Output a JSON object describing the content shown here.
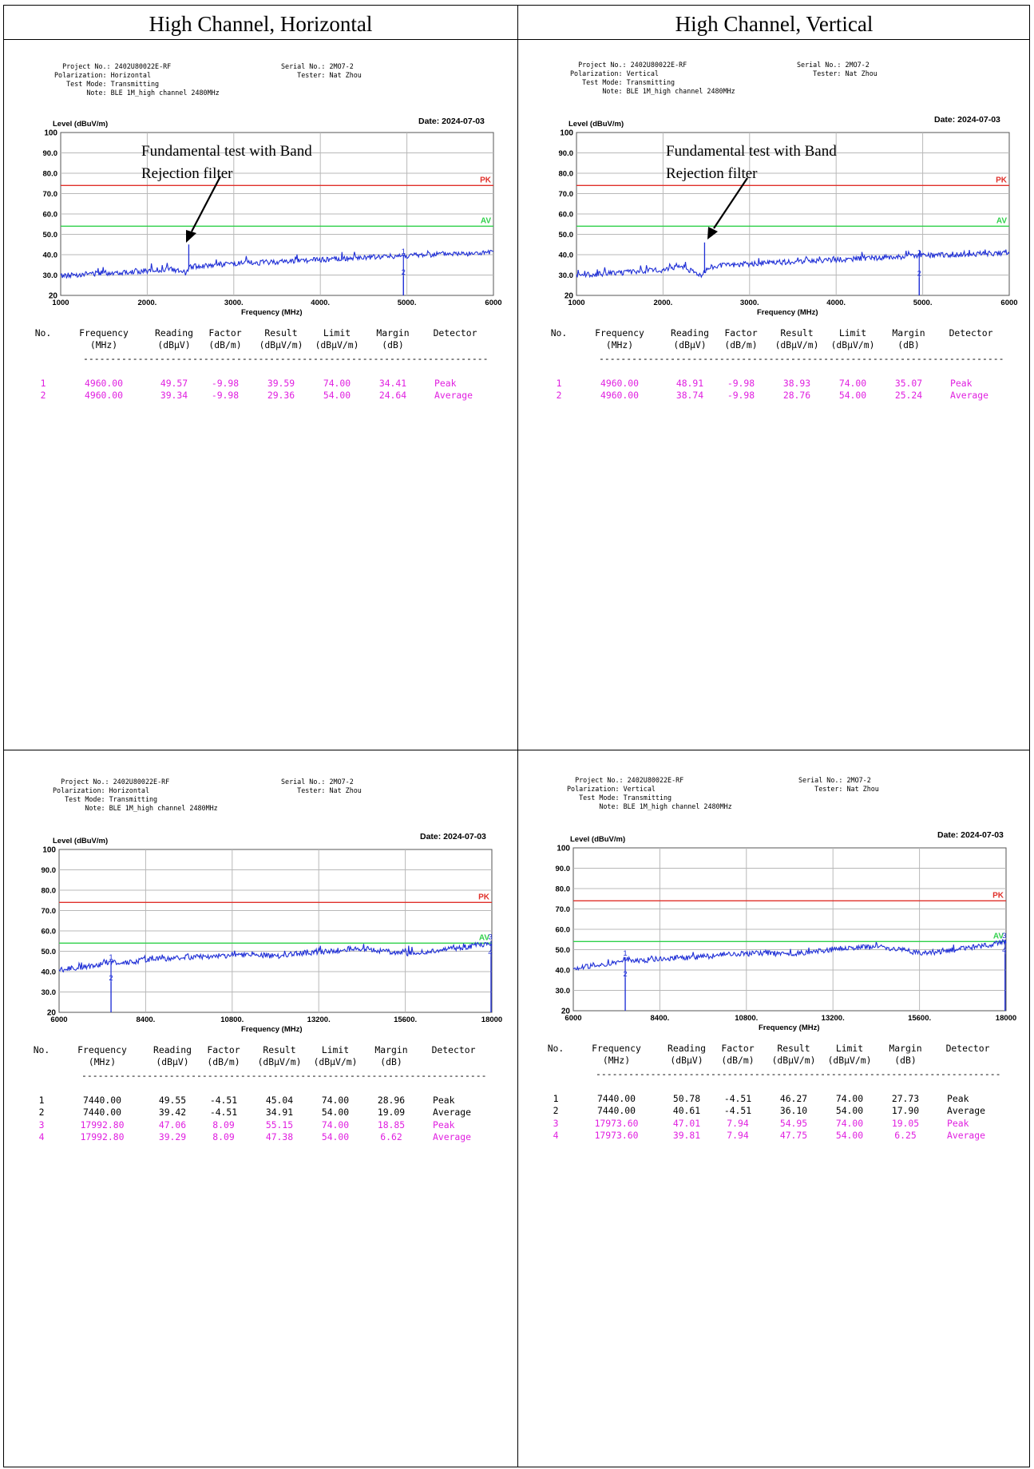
{
  "header": {
    "col_titles": [
      "High Channel, Horizontal",
      "High Channel, Vertical"
    ]
  },
  "colors": {
    "trace": "#1f2fd6",
    "marker": "#1f2fd6",
    "pk_line": "#e0302a",
    "av_line": "#2fd04a",
    "grid": "#b8b8b8",
    "limit_row": "#e020e0",
    "normal_row": "#000000"
  },
  "table_headers": {
    "no": "No.",
    "frequency": "Frequency",
    "frequency_unit": "(MHz)",
    "reading": "Reading",
    "reading_unit": "(dBμV)",
    "factor": "Factor",
    "factor_unit": "(dB/m)",
    "result": "Result",
    "result_unit": "(dBμV/m)",
    "limit": "Limit",
    "limit_unit": "(dBμV/m)",
    "margin": "Margin",
    "margin_unit": "(dB)",
    "detector": "Detector"
  },
  "panels": [
    {
      "meta": {
        "line1": "  Project No.: 2402U80022E-RF",
        "line2": "Polarization: Horizontal",
        "line3": "   Test Mode: Transmitting",
        "line4": "        Note: BLE 1M_high channel 2480MHz",
        "serial": "Serial No.: 2MO7-2",
        "tester": "    Tester: Nat Zhou"
      },
      "date": "Date: 2024-07-03",
      "ylabel": "Level (dBuV/m)",
      "xlabel": "Frequency (MHz)",
      "annotation": {
        "line1": "Fundamental test with Band",
        "line2": "Rejection filter"
      },
      "rows": [
        {
          "no": "1",
          "freq": "4960.00",
          "reading": "49.57",
          "factor": "-9.98",
          "result": "39.59",
          "limit": "74.00",
          "margin": "34.41",
          "detector": "Peak",
          "highlight": true
        },
        {
          "no": "2",
          "freq": "4960.00",
          "reading": "39.34",
          "factor": "-9.98",
          "result": "29.36",
          "limit": "54.00",
          "margin": "24.64",
          "detector": "Average",
          "highlight": true
        }
      ]
    },
    {
      "meta": {
        "line1": "  Project No.: 2402U80022E-RF",
        "line2": "Polarization: Vertical",
        "line3": "   Test Mode: Transmitting",
        "line4": "        Note: BLE 1M_high channel 2480MHz",
        "serial": "Serial No.: 2MO7-2",
        "tester": "    Tester: Nat Zhou"
      },
      "date": "Date: 2024-07-03",
      "ylabel": "Level (dBuV/m)",
      "xlabel": "Frequency (MHz)",
      "annotation": {
        "line1": "Fundamental test with Band",
        "line2": "Rejection filter"
      },
      "rows": [
        {
          "no": "1",
          "freq": "4960.00",
          "reading": "48.91",
          "factor": "-9.98",
          "result": "38.93",
          "limit": "74.00",
          "margin": "35.07",
          "detector": "Peak",
          "highlight": true
        },
        {
          "no": "2",
          "freq": "4960.00",
          "reading": "38.74",
          "factor": "-9.98",
          "result": "28.76",
          "limit": "54.00",
          "margin": "25.24",
          "detector": "Average",
          "highlight": true
        }
      ]
    },
    {
      "meta": {
        "line1": "  Project No.: 2402U80022E-RF",
        "line2": "Polarization: Horizontal",
        "line3": "   Test Mode: Transmitting",
        "line4": "        Note: BLE 1M_high channel 2480MHz",
        "serial": "Serial No.: 2MO7-2",
        "tester": "    Tester: Nat Zhou"
      },
      "date": "Date: 2024-07-03",
      "ylabel": "Level (dBuV/m)",
      "xlabel": "Frequency (MHz)",
      "rows": [
        {
          "no": "1",
          "freq": "7440.00",
          "reading": "49.55",
          "factor": "-4.51",
          "result": "45.04",
          "limit": "74.00",
          "margin": "28.96",
          "detector": "Peak",
          "highlight": false
        },
        {
          "no": "2",
          "freq": "7440.00",
          "reading": "39.42",
          "factor": "-4.51",
          "result": "34.91",
          "limit": "54.00",
          "margin": "19.09",
          "detector": "Average",
          "highlight": false
        },
        {
          "no": "3",
          "freq": "17992.80",
          "reading": "47.06",
          "factor": "8.09",
          "result": "55.15",
          "limit": "74.00",
          "margin": "18.85",
          "detector": "Peak",
          "highlight": true
        },
        {
          "no": "4",
          "freq": "17992.80",
          "reading": "39.29",
          "factor": "8.09",
          "result": "47.38",
          "limit": "54.00",
          "margin": "6.62",
          "detector": "Average",
          "highlight": true
        }
      ]
    },
    {
      "meta": {
        "line1": "  Project No.: 2402U80022E-RF",
        "line2": "Polarization: Vertical",
        "line3": "   Test Mode: Transmitting",
        "line4": "        Note: BLE 1M_high channel 2480MHz",
        "serial": "Serial No.: 2MO7-2",
        "tester": "    Tester: Nat Zhou"
      },
      "date": "Date: 2024-07-03",
      "ylabel": "Level (dBuV/m)",
      "xlabel": "Frequency (MHz)",
      "rows": [
        {
          "no": "1",
          "freq": "7440.00",
          "reading": "50.78",
          "factor": "-4.51",
          "result": "46.27",
          "limit": "74.00",
          "margin": "27.73",
          "detector": "Peak",
          "highlight": false
        },
        {
          "no": "2",
          "freq": "7440.00",
          "reading": "40.61",
          "factor": "-4.51",
          "result": "36.10",
          "limit": "54.00",
          "margin": "17.90",
          "detector": "Average",
          "highlight": false
        },
        {
          "no": "3",
          "freq": "17973.60",
          "reading": "47.01",
          "factor": "7.94",
          "result": "54.95",
          "limit": "74.00",
          "margin": "19.05",
          "detector": "Peak",
          "highlight": true
        },
        {
          "no": "4",
          "freq": "17973.60",
          "reading": "39.81",
          "factor": "7.94",
          "result": "47.75",
          "limit": "54.00",
          "margin": "6.25",
          "detector": "Average",
          "highlight": true
        }
      ]
    }
  ],
  "chart_data": [
    {
      "type": "line",
      "xlabel": "Frequency (MHz)",
      "ylabel": "Level (dBuV/m)",
      "xlim": [
        1000,
        6000
      ],
      "ylim": [
        20,
        100
      ],
      "xticks": [
        "1000",
        "2000.",
        "3000.",
        "4000.",
        "5000.",
        "6000"
      ],
      "yticks": [
        "20",
        "30.0",
        "40.0",
        "50.0",
        "60.0",
        "70.0",
        "80.0",
        "90.0",
        "100"
      ],
      "grid": true,
      "limit_lines": [
        {
          "name": "PK",
          "y": 74
        },
        {
          "name": "AV",
          "y": 54
        }
      ],
      "series": [
        {
          "x": [
            1000,
            1250,
            1500,
            1750,
            2000,
            2250,
            2450,
            2500,
            2750,
            3000,
            3250,
            3500,
            3750,
            4000,
            4250,
            4500,
            4750,
            5000,
            5250,
            5500,
            5750,
            6000
          ],
          "y": [
            29.5,
            30.5,
            31,
            31.5,
            32,
            33,
            31,
            34,
            35,
            35.5,
            36,
            36.5,
            37,
            37.5,
            38,
            38.5,
            39,
            39.5,
            40,
            40.5,
            40.5,
            41
          ]
        }
      ],
      "spikes": [
        {
          "x": 2480,
          "y": 45
        }
      ],
      "markers": [
        {
          "label": "1",
          "x": 4960,
          "y": 39.59
        },
        {
          "label": "2",
          "x": 4960,
          "y": 29.36
        }
      ]
    },
    {
      "type": "line",
      "xlabel": "Frequency (MHz)",
      "ylabel": "Level (dBuV/m)",
      "xlim": [
        1000,
        6000
      ],
      "ylim": [
        20,
        100
      ],
      "xticks": [
        "1000",
        "2000.",
        "3000.",
        "4000.",
        "5000.",
        "6000"
      ],
      "yticks": [
        "20",
        "30.0",
        "40.0",
        "50.0",
        "60.0",
        "70.0",
        "80.0",
        "90.0",
        "100"
      ],
      "grid": true,
      "limit_lines": [
        {
          "name": "PK",
          "y": 74
        },
        {
          "name": "AV",
          "y": 54
        }
      ],
      "series": [
        {
          "x": [
            1000,
            1250,
            1500,
            1750,
            2000,
            2100,
            2250,
            2400,
            2450,
            2550,
            2750,
            3000,
            3250,
            3500,
            3750,
            4000,
            4250,
            4500,
            4750,
            5000,
            5250,
            5500,
            5750,
            6000
          ],
          "y": [
            30,
            30.5,
            31,
            32,
            32.5,
            34,
            33.5,
            31,
            30,
            34,
            35,
            35.5,
            36,
            36.5,
            37,
            37.5,
            38,
            38.5,
            39,
            39.5,
            40,
            40,
            40.5,
            41
          ]
        }
      ],
      "spikes": [
        {
          "x": 2480,
          "y": 46
        }
      ],
      "markers": [
        {
          "label": "1",
          "x": 4960,
          "y": 38.93
        },
        {
          "label": "2",
          "x": 4960,
          "y": 28.76
        }
      ]
    },
    {
      "type": "line",
      "xlabel": "Frequency (MHz)",
      "ylabel": "Level (dBuV/m)",
      "xlim": [
        6000,
        18000
      ],
      "ylim": [
        20,
        100
      ],
      "xticks": [
        "6000",
        "8400.",
        "10800.",
        "13200.",
        "15600.",
        "18000"
      ],
      "yticks": [
        "20",
        "30.0",
        "40.0",
        "50.0",
        "60.0",
        "70.0",
        "80.0",
        "90.0",
        "100"
      ],
      "grid": true,
      "limit_lines": [
        {
          "name": "PK",
          "y": 74
        },
        {
          "name": "AV",
          "y": 54
        }
      ],
      "series": [
        {
          "x": [
            6000,
            6600,
            7200,
            7440,
            7800,
            8400,
            9000,
            9600,
            10200,
            10800,
            11400,
            12000,
            12600,
            13200,
            13800,
            14400,
            15000,
            15600,
            16200,
            16800,
            17400,
            18000
          ],
          "y": [
            41,
            42,
            43.5,
            45,
            44,
            46,
            46.5,
            47,
            47.5,
            48,
            48.5,
            47.5,
            49,
            49.5,
            50.5,
            51.5,
            50,
            49,
            49.5,
            51,
            52.5,
            54
          ]
        }
      ],
      "spikes": [],
      "markers": [
        {
          "label": "1",
          "x": 7440,
          "y": 45.04
        },
        {
          "label": "2",
          "x": 7440,
          "y": 34.91
        },
        {
          "label": "3",
          "x": 17992.8,
          "y": 55.15
        },
        {
          "label": "4",
          "x": 17992.8,
          "y": 47.38
        }
      ]
    },
    {
      "type": "line",
      "xlabel": "Frequency (MHz)",
      "ylabel": "Level (dBuV/m)",
      "xlim": [
        6000,
        18000
      ],
      "ylim": [
        20,
        100
      ],
      "xticks": [
        "6000",
        "8400.",
        "10800.",
        "13200.",
        "15600.",
        "18000"
      ],
      "yticks": [
        "20",
        "30.0",
        "40.0",
        "50.0",
        "60.0",
        "70.0",
        "80.0",
        "90.0",
        "100"
      ],
      "grid": true,
      "limit_lines": [
        {
          "name": "PK",
          "y": 74
        },
        {
          "name": "AV",
          "y": 54
        }
      ],
      "series": [
        {
          "x": [
            6000,
            6600,
            7200,
            7440,
            7800,
            8400,
            9000,
            9600,
            10200,
            10800,
            11400,
            12000,
            12600,
            13200,
            13800,
            14400,
            15000,
            15600,
            16200,
            16800,
            17400,
            18000
          ],
          "y": [
            41,
            42,
            43.5,
            45.5,
            44.5,
            45.5,
            46,
            46.5,
            47.5,
            48,
            48.5,
            47.5,
            49,
            50,
            51,
            51.5,
            50,
            48.5,
            49,
            50.5,
            52,
            54
          ]
        }
      ],
      "spikes": [],
      "markers": [
        {
          "label": "1",
          "x": 7440,
          "y": 46.27
        },
        {
          "label": "2",
          "x": 7440,
          "y": 36.1
        },
        {
          "label": "3",
          "x": 17973.6,
          "y": 54.95
        },
        {
          "label": "4",
          "x": 17973.6,
          "y": 47.75
        }
      ]
    }
  ]
}
